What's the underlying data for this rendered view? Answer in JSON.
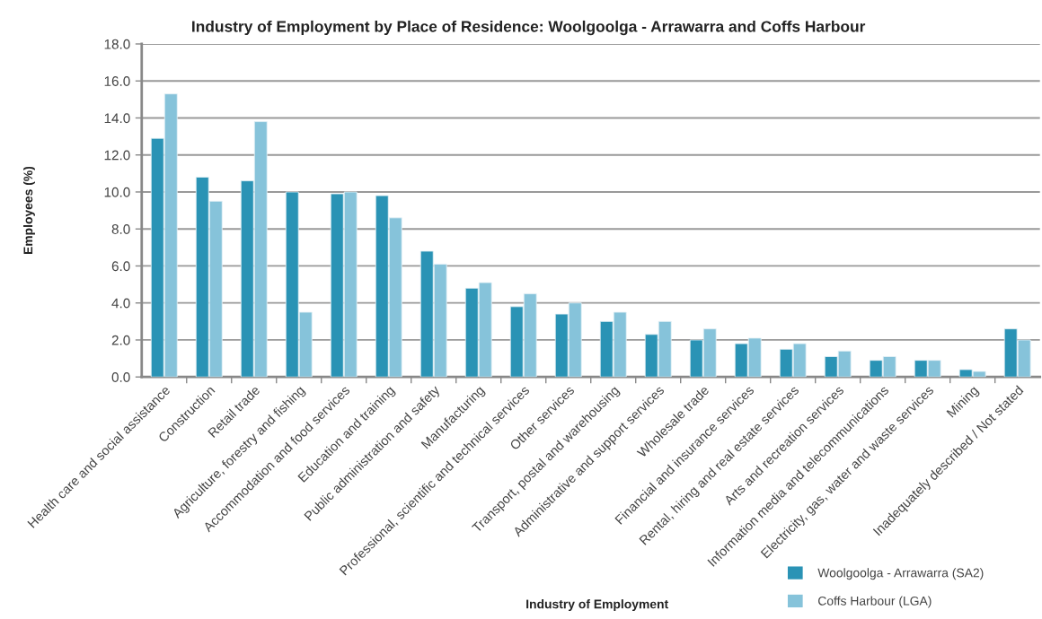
{
  "chart_data": {
    "type": "bar",
    "title": "Industry of Employment by Place of Residence: Woolgoolga - Arrawarra and Coffs Harbour",
    "xlabel": "Industry of Employment",
    "ylabel": "Employees (%)",
    "categories": [
      "Health care and social assistance",
      "Construction",
      "Retail trade",
      "Agriculture, forestry and fishing",
      "Accommodation and food services",
      "Education and training",
      "Public administration and safety",
      "Manufacturing",
      "Professional, scientific and technical services",
      "Other services",
      "Transport, postal and warehousing",
      "Administrative and support services",
      "Wholesale trade",
      "Financial and insurance services",
      "Rental, hiring and real estate services",
      "Arts and recreation services",
      "Information media and telecommunications",
      "Electricity, gas, water and waste services",
      "Mining",
      "Inadequately described / Not stated"
    ],
    "series": [
      {
        "name": "Woolgoolga - Arrawarra (SA2)",
        "color": "#2a93b5",
        "values": [
          12.9,
          10.8,
          10.6,
          10.0,
          9.9,
          9.8,
          6.8,
          4.8,
          3.8,
          3.4,
          3.0,
          2.3,
          2.0,
          1.8,
          1.5,
          1.1,
          0.9,
          0.9,
          0.4,
          2.6
        ]
      },
      {
        "name": "Coffs Harbour (LGA)",
        "color": "#86c3da",
        "values": [
          15.3,
          9.5,
          13.8,
          3.5,
          10.0,
          8.6,
          6.1,
          5.1,
          4.5,
          4.0,
          3.5,
          3.0,
          2.6,
          2.1,
          1.8,
          1.4,
          1.1,
          0.9,
          0.3,
          2.0
        ]
      }
    ],
    "ylim": [
      0,
      18
    ],
    "yticks": [
      {
        "value": 0,
        "label": "0.0"
      },
      {
        "value": 2,
        "label": "2.0"
      },
      {
        "value": 4,
        "label": "4.0"
      },
      {
        "value": 6,
        "label": "6.0"
      },
      {
        "value": 8,
        "label": "8.0"
      },
      {
        "value": 10,
        "label": "10.0"
      },
      {
        "value": 12,
        "label": "12.0"
      },
      {
        "value": 14,
        "label": "14.0"
      },
      {
        "value": 16,
        "label": "16.0"
      },
      {
        "value": 18,
        "label": "18.0"
      }
    ],
    "grid": "y",
    "legend": "bottom right"
  }
}
